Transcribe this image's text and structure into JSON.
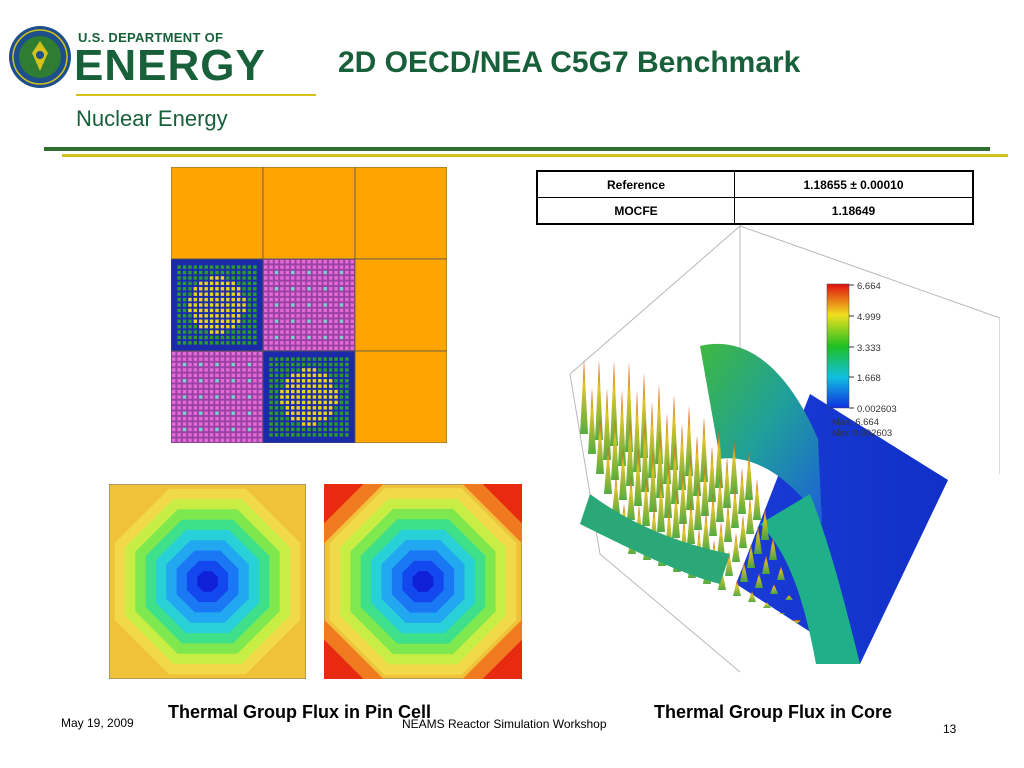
{
  "header": {
    "agency_small": "U.S. DEPARTMENT OF",
    "agency_big": "ENERGY",
    "office": "Nuclear Energy",
    "seal_icon": "doe-seal-icon"
  },
  "slide": {
    "title": "2D OECD/NEA C5G7 Benchmark"
  },
  "results": {
    "rows": [
      {
        "method": "Reference",
        "keff": "1.18655 ± 0.00010"
      },
      {
        "method": "MOCFE",
        "keff": "1.18649"
      }
    ]
  },
  "colorbar": {
    "ticks": [
      "6.664",
      "4.999",
      "3.333",
      "1.668",
      "0.002603"
    ],
    "max_label": "Max: 6.664",
    "min_label": "Min: 0.002603"
  },
  "captions": {
    "pin_cell": "Thermal Group Flux in Pin Cell",
    "core": "Thermal Group Flux in Core"
  },
  "footer": {
    "date": "May 19, 2009",
    "event": "NEAMS Reactor Simulation Workshop",
    "page": "13"
  },
  "colors": {
    "doe_green": "#17603a",
    "gold_rule": "#d4c11a",
    "reflector": "#ffa500",
    "mox_assembly": "#9b40a6",
    "uo2_fuel": "#e8d320",
    "guide_tube": "#2c9a2c"
  }
}
